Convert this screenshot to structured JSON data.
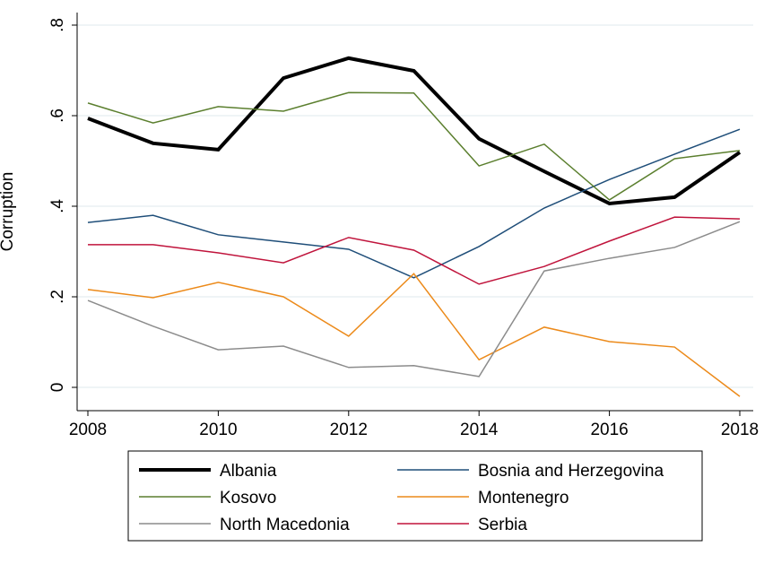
{
  "chart_data": {
    "type": "line",
    "title": "",
    "xlabel": "",
    "ylabel": "Corruption",
    "x": [
      2008,
      2009,
      2010,
      2011,
      2012,
      2013,
      2014,
      2015,
      2016,
      2017,
      2018
    ],
    "xticks": [
      2008,
      2010,
      2012,
      2014,
      2016,
      2018
    ],
    "xtick_labels": [
      "2008",
      "2010",
      "2012",
      "2014",
      "2016",
      "2018"
    ],
    "yticks": [
      0,
      0.2,
      0.4,
      0.6,
      0.8
    ],
    "ytick_labels": [
      "0",
      ".2",
      ".4",
      ".6",
      ".8"
    ],
    "xlim": [
      2008,
      2018
    ],
    "ylim": [
      -0.05,
      0.82
    ],
    "grid": true,
    "legend_placement": "bottom",
    "series": [
      {
        "name": "Albania",
        "color": "#000000",
        "width": 4,
        "values": [
          0.594,
          0.539,
          0.525,
          0.683,
          0.727,
          0.699,
          0.549,
          0.477,
          0.406,
          0.42,
          0.519
        ]
      },
      {
        "name": "Bosnia and Herzegovina",
        "color": "#1f4e79",
        "width": 1.5,
        "values": [
          0.364,
          0.38,
          0.337,
          0.321,
          0.305,
          0.242,
          0.311,
          0.396,
          0.459,
          0.515,
          0.57
        ]
      },
      {
        "name": "Kosovo",
        "color": "#5b7f2e",
        "width": 1.5,
        "values": [
          0.628,
          0.584,
          0.62,
          0.61,
          0.651,
          0.65,
          0.489,
          0.537,
          0.414,
          0.505,
          0.523
        ]
      },
      {
        "name": "Montenegro",
        "color": "#ec8a1a",
        "width": 1.5,
        "values": [
          0.216,
          0.198,
          0.232,
          0.2,
          0.113,
          0.251,
          0.061,
          0.133,
          0.101,
          0.089,
          -0.02
        ]
      },
      {
        "name": "North Macedonia",
        "color": "#8c8c8c",
        "width": 1.5,
        "values": [
          0.192,
          0.135,
          0.083,
          0.091,
          0.044,
          0.048,
          0.024,
          0.257,
          0.285,
          0.309,
          0.366
        ]
      },
      {
        "name": "Serbia",
        "color": "#c0143c",
        "width": 1.5,
        "values": [
          0.315,
          0.315,
          0.297,
          0.275,
          0.331,
          0.303,
          0.228,
          0.267,
          0.323,
          0.376,
          0.372
        ]
      }
    ]
  }
}
